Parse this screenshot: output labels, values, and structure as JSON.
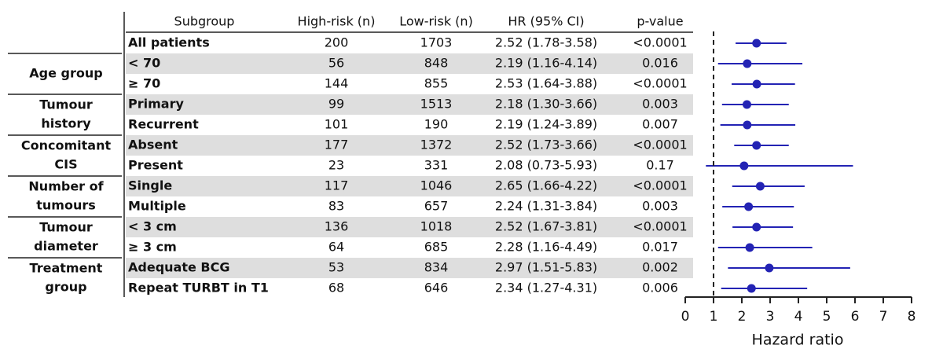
{
  "chart_data": {
    "type": "forest",
    "columns": [
      "Subgroup",
      "High-risk (n)",
      "Low-risk (n)",
      "HR (95% CI)",
      "p-value"
    ],
    "overall": {
      "subgroup": "All patients",
      "high_risk": 200,
      "low_risk": 1703,
      "hr": 2.52,
      "ci_low": 1.78,
      "ci_high": 3.58,
      "hr_label": "2.52 (1.78-3.58)",
      "p_value": "<0.0001"
    },
    "groups": [
      {
        "label": [
          "Age group"
        ],
        "rows": [
          {
            "subgroup": "< 70",
            "high_risk": 56,
            "low_risk": 848,
            "hr": 2.19,
            "ci_low": 1.16,
            "ci_high": 4.14,
            "hr_label": "2.19 (1.16-4.14)",
            "p_value": "0.016"
          },
          {
            "subgroup": "≥ 70",
            "high_risk": 144,
            "low_risk": 855,
            "hr": 2.53,
            "ci_low": 1.64,
            "ci_high": 3.88,
            "hr_label": "2.53 (1.64-3.88)",
            "p_value": "<0.0001"
          }
        ]
      },
      {
        "label": [
          "Tumour",
          "history"
        ],
        "rows": [
          {
            "subgroup": "Primary",
            "high_risk": 99,
            "low_risk": 1513,
            "hr": 2.18,
            "ci_low": 1.3,
            "ci_high": 3.66,
            "hr_label": "2.18 (1.30-3.66)",
            "p_value": "0.003"
          },
          {
            "subgroup": "Recurrent",
            "high_risk": 101,
            "low_risk": 190,
            "hr": 2.19,
            "ci_low": 1.24,
            "ci_high": 3.89,
            "hr_label": "2.19 (1.24-3.89)",
            "p_value": "0.007"
          }
        ]
      },
      {
        "label": [
          "Concomitant",
          "CIS"
        ],
        "rows": [
          {
            "subgroup": "Absent",
            "high_risk": 177,
            "low_risk": 1372,
            "hr": 2.52,
            "ci_low": 1.73,
            "ci_high": 3.66,
            "hr_label": "2.52 (1.73-3.66)",
            "p_value": "<0.0001"
          },
          {
            "subgroup": "Present",
            "high_risk": 23,
            "low_risk": 331,
            "hr": 2.08,
            "ci_low": 0.73,
            "ci_high": 5.93,
            "hr_label": "2.08 (0.73-5.93)",
            "p_value": "0.17"
          }
        ]
      },
      {
        "label": [
          "Number of",
          "tumours"
        ],
        "rows": [
          {
            "subgroup": "Single",
            "high_risk": 117,
            "low_risk": 1046,
            "hr": 2.65,
            "ci_low": 1.66,
            "ci_high": 4.22,
            "hr_label": "2.65 (1.66-4.22)",
            "p_value": "<0.0001"
          },
          {
            "subgroup": "Multiple",
            "high_risk": 83,
            "low_risk": 657,
            "hr": 2.24,
            "ci_low": 1.31,
            "ci_high": 3.84,
            "hr_label": "2.24 (1.31-3.84)",
            "p_value": "0.003"
          }
        ]
      },
      {
        "label": [
          "Tumour",
          "diameter"
        ],
        "rows": [
          {
            "subgroup": "< 3 cm",
            "high_risk": 136,
            "low_risk": 1018,
            "hr": 2.52,
            "ci_low": 1.67,
            "ci_high": 3.81,
            "hr_label": "2.52 (1.67-3.81)",
            "p_value": "<0.0001"
          },
          {
            "subgroup": "≥ 3 cm",
            "high_risk": 64,
            "low_risk": 685,
            "hr": 2.28,
            "ci_low": 1.16,
            "ci_high": 4.49,
            "hr_label": "2.28 (1.16-4.49)",
            "p_value": "0.017"
          }
        ]
      },
      {
        "label": [
          "Treatment",
          "group"
        ],
        "rows": [
          {
            "subgroup": "Adequate BCG",
            "high_risk": 53,
            "low_risk": 834,
            "hr": 2.97,
            "ci_low": 1.51,
            "ci_high": 5.83,
            "hr_label": "2.97 (1.51-5.83)",
            "p_value": "0.002"
          },
          {
            "subgroup": "Repeat TURBT in T1",
            "high_risk": 68,
            "low_risk": 646,
            "hr": 2.34,
            "ci_low": 1.27,
            "ci_high": 4.31,
            "hr_label": "2.34 (1.27-4.31)",
            "p_value": "0.006"
          }
        ]
      }
    ],
    "xlabel": "Hazard ratio",
    "xlim": [
      0,
      8
    ],
    "xticks": [
      0,
      1,
      2,
      3,
      4,
      5,
      6,
      7,
      8
    ],
    "reference": 1,
    "color": "#2323b4"
  }
}
